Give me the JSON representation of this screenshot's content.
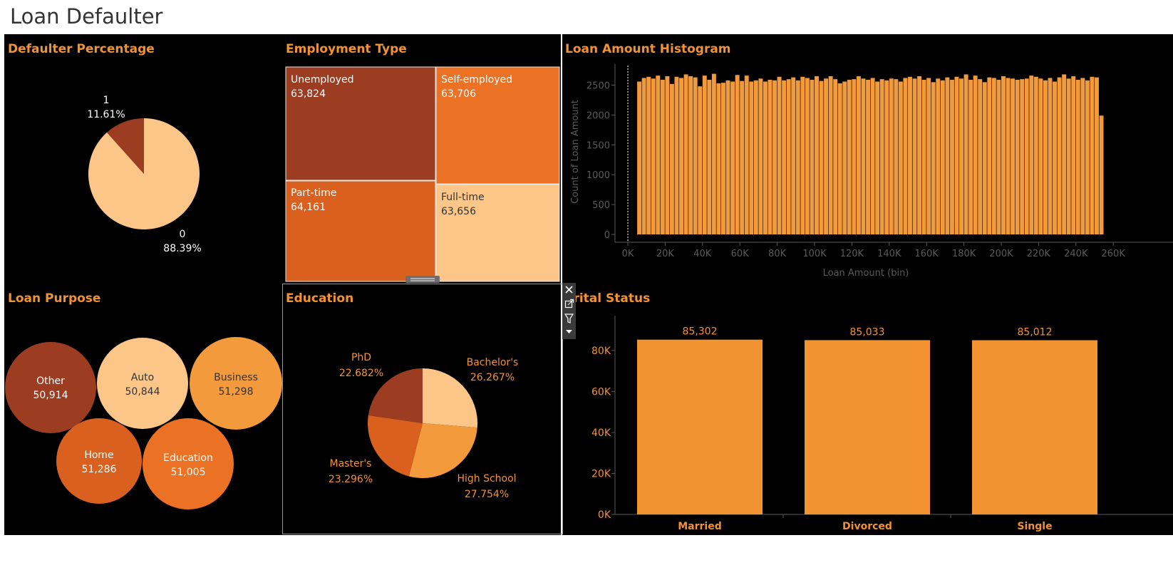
{
  "dashboard": {
    "title": "Loan Defaulter"
  },
  "colors": {
    "background": "#000000",
    "accent": "#F29230",
    "dark_brown": "#9C3D22",
    "burnt_orange": "#D9601F",
    "orange": "#EB7124",
    "light_orange": "#F29A3C",
    "peach": "#FDC689",
    "axis_grey": "#5A5A5A"
  },
  "icons": [
    "close-icon",
    "popout-icon",
    "filter-icon",
    "more-options-icon",
    "resize-handle-icon"
  ],
  "chart_data": [
    {
      "type": "pie",
      "title": "Defaulter Percentage",
      "slices": [
        {
          "label": "1",
          "percent": "11.61%",
          "value": 11.61,
          "color": "#9C3D22"
        },
        {
          "label": "0",
          "percent": "88.39%",
          "value": 88.39,
          "color": "#FDC689"
        }
      ]
    },
    {
      "type": "treemap",
      "title": "Employment Type",
      "items": [
        {
          "label": "Unemployed",
          "value": 63824,
          "value_text": "63,824",
          "color": "#9C3D22"
        },
        {
          "label": "Self-employed",
          "value": 63706,
          "value_text": "63,706",
          "color": "#EB7124"
        },
        {
          "label": "Part-time",
          "value": 64161,
          "value_text": "64,161",
          "color": "#D9601F"
        },
        {
          "label": "Full-time",
          "value": 63656,
          "value_text": "63,656",
          "color": "#FDC689"
        }
      ]
    },
    {
      "type": "bar",
      "subtype": "histogram",
      "title": "Loan Amount Histogram",
      "xlabel": "Loan Amount (bin)",
      "ylabel": "Count of Loan Amount",
      "x_ticks": [
        "0K",
        "20K",
        "40K",
        "60K",
        "80K",
        "100K",
        "120K",
        "140K",
        "160K",
        "180K",
        "200K",
        "220K",
        "240K",
        "260K"
      ],
      "y_ticks": [
        "0",
        "500",
        "1000",
        "1500",
        "2000",
        "2500"
      ],
      "xlim": [
        0,
        260000
      ],
      "ylim": [
        0,
        2850
      ],
      "bin_width": 2500,
      "bin_start": 5000,
      "values": [
        2560,
        2620,
        2640,
        2610,
        2660,
        2590,
        2650,
        2520,
        2640,
        2620,
        2680,
        2650,
        2630,
        2480,
        2660,
        2590,
        2690,
        2530,
        2540,
        2580,
        2560,
        2670,
        2570,
        2660,
        2560,
        2580,
        2610,
        2560,
        2590,
        2580,
        2640,
        2580,
        2600,
        2630,
        2580,
        2640,
        2620,
        2590,
        2650,
        2570,
        2610,
        2650,
        2600,
        2530,
        2560,
        2590,
        2600,
        2650,
        2610,
        2590,
        2620,
        2560,
        2600,
        2580,
        2610,
        2600,
        2560,
        2620,
        2640,
        2610,
        2650,
        2590,
        2620,
        2550,
        2610,
        2580,
        2630,
        2590,
        2640,
        2610,
        2680,
        2590,
        2660,
        2600,
        2550,
        2630,
        2620,
        2590,
        2650,
        2620,
        2610,
        2590,
        2600,
        2610,
        2660,
        2640,
        2610,
        2580,
        2620,
        2560,
        2630,
        2680,
        2610,
        2650,
        2590,
        2620,
        2580,
        2640,
        2630,
        1990
      ],
      "color": "#F29A3C",
      "grid": false
    },
    {
      "type": "bubble",
      "title": "Loan Purpose",
      "items": [
        {
          "label": "Other",
          "value": 50914,
          "value_text": "50,914",
          "color": "#9C3D22"
        },
        {
          "label": "Auto",
          "value": 50844,
          "value_text": "50,844",
          "color": "#FDC689"
        },
        {
          "label": "Business",
          "value": 51298,
          "value_text": "51,298",
          "color": "#F29A3C"
        },
        {
          "label": "Home",
          "value": 51286,
          "value_text": "51,286",
          "color": "#D9601F"
        },
        {
          "label": "Education",
          "value": 51005,
          "value_text": "51,005",
          "color": "#EB7124"
        }
      ]
    },
    {
      "type": "pie",
      "title": "Education",
      "slices": [
        {
          "label": "Bachelor's",
          "percent": "26.267%",
          "value": 26.267,
          "color": "#FDC689"
        },
        {
          "label": "High School",
          "percent": "27.754%",
          "value": 27.754,
          "color": "#F29A3C"
        },
        {
          "label": "Master's",
          "percent": "23.296%",
          "value": 23.296,
          "color": "#D9601F"
        },
        {
          "label": "PhD",
          "percent": "22.682%",
          "value": 22.682,
          "color": "#9C3D22"
        }
      ]
    },
    {
      "type": "bar",
      "title": "arital Status",
      "categories": [
        "Married",
        "Divorced",
        "Single"
      ],
      "values": [
        85302,
        85033,
        85012
      ],
      "value_labels": [
        "85,302",
        "85,033",
        "85,012"
      ],
      "y_ticks": [
        "0K",
        "20K",
        "40K",
        "60K",
        "80K"
      ],
      "ylim": [
        0,
        95000
      ],
      "color": "#F29230",
      "grid": false
    }
  ]
}
